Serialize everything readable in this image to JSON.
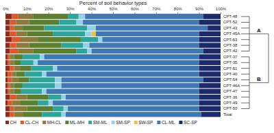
{
  "chart_data": {
    "type": "bar",
    "orientation": "horizontal",
    "stacked": true,
    "title": "Percent of soil behavior types",
    "categories": [
      "CPT-48",
      "CPT-52",
      "CPT-43",
      "CPT-45A",
      "CPT-53",
      "CPT-38",
      "CPT-42",
      "CPT-37",
      "CPT-35",
      "CPT-51",
      "CPT-40",
      "CPT-54",
      "CPT-46A",
      "CPT-47",
      "CPT-36",
      "CPT-49",
      "CPT-50",
      "Total"
    ],
    "xlim": [
      0,
      100
    ],
    "xticks": [
      {
        "value": 0,
        "label": "0%"
      },
      {
        "value": 10,
        "label": "10%"
      },
      {
        "value": 20,
        "label": "20%"
      },
      {
        "value": 30,
        "label": "30%"
      },
      {
        "value": 40,
        "label": "40%"
      },
      {
        "value": 50,
        "label": "50%"
      },
      {
        "value": 60,
        "label": "60%"
      },
      {
        "value": 70,
        "label": "70%"
      },
      {
        "value": 80,
        "label": "80%"
      },
      {
        "value": 90,
        "label": "90%"
      },
      {
        "value": 100,
        "label": "100%"
      }
    ],
    "legend": "bottom",
    "series": [
      {
        "name": "CH",
        "color": "#8b2e1c",
        "values": [
          3,
          2,
          2,
          2,
          3,
          2,
          2,
          1,
          1,
          2,
          1,
          1,
          1,
          1,
          2,
          1,
          2,
          2
        ]
      },
      {
        "name": "CL-CH",
        "color": "#e2562c",
        "values": [
          3,
          3,
          2,
          3,
          4,
          3,
          4,
          1,
          1,
          2,
          2,
          2,
          1,
          1,
          3,
          2,
          2,
          2
        ]
      },
      {
        "name": "MH-CL",
        "color": "#8a7a3c",
        "values": [
          7,
          6,
          4,
          5,
          8,
          6,
          7,
          2,
          2,
          3,
          2,
          3,
          2,
          2,
          5,
          4,
          6,
          4
        ]
      },
      {
        "name": "ML-MH",
        "color": "#5b7f2e",
        "values": [
          16,
          14,
          10,
          12,
          20,
          15,
          20,
          4,
          3,
          5,
          4,
          5,
          4,
          3,
          10,
          8,
          12,
          9
        ]
      },
      {
        "name": "SM-ML",
        "color": "#2ea59a",
        "values": [
          5,
          8,
          20,
          15,
          8,
          10,
          5,
          8,
          6,
          10,
          8,
          12,
          15,
          10,
          6,
          5,
          5,
          9
        ]
      },
      {
        "name": "SM-SP",
        "color": "#92d2ee",
        "values": [
          3,
          3,
          4,
          3,
          2,
          3,
          2,
          2,
          2,
          2,
          2,
          3,
          3,
          2,
          2,
          2,
          2,
          2
        ]
      },
      {
        "name": "SW-SP",
        "color": "#f2c040",
        "values": [
          0,
          0,
          0,
          2,
          0,
          0,
          0,
          0,
          0,
          0,
          0,
          0,
          0,
          0,
          0,
          0,
          0,
          0
        ]
      },
      {
        "name": "CL-ML",
        "color": "#3f78b2",
        "values": [
          55,
          54,
          52,
          48,
          45,
          51,
          52,
          72,
          75,
          66,
          71,
          66,
          64,
          71,
          62,
          68,
          61,
          63
        ]
      },
      {
        "name": "SC-SP",
        "color": "#1b2a6b",
        "values": [
          8,
          10,
          6,
          10,
          10,
          10,
          8,
          10,
          10,
          10,
          10,
          8,
          10,
          10,
          10,
          10,
          10,
          9
        ]
      }
    ],
    "clusters": [
      {
        "label": "A",
        "members": [
          "CPT-48",
          "CPT-52",
          "CPT-43",
          "CPT-45A",
          "CPT-53",
          "CPT-38",
          "CPT-42"
        ]
      },
      {
        "label": "B",
        "members": [
          "CPT-37",
          "CPT-35",
          "CPT-51",
          "CPT-40",
          "CPT-54",
          "CPT-46A",
          "CPT-47",
          "CPT-36",
          "CPT-49",
          "CPT-50"
        ]
      }
    ]
  }
}
